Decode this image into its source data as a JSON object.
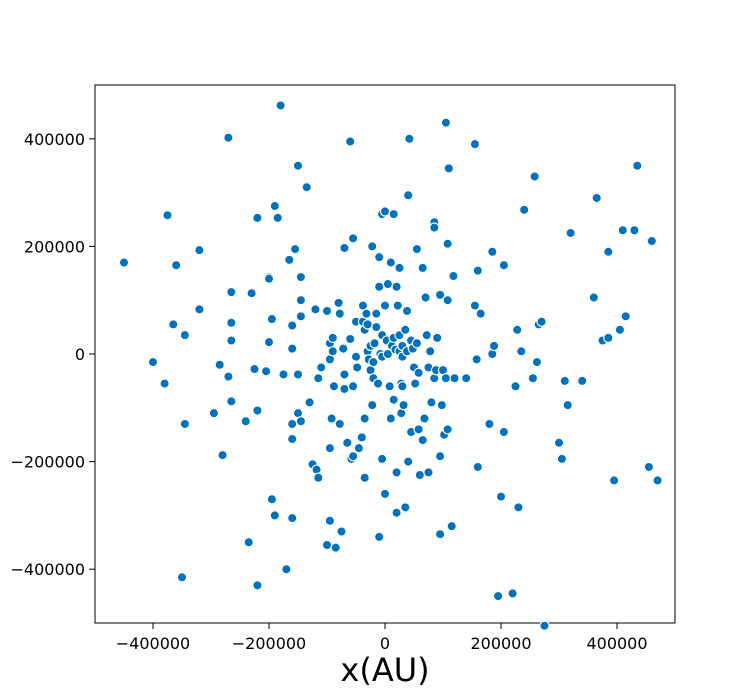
{
  "chart_data": {
    "type": "scatter",
    "title": "",
    "xlabel": "x(AU)",
    "ylabel": "",
    "xlim": [
      -500000,
      500000
    ],
    "ylim": [
      -500000,
      500000
    ],
    "xticks": [
      -400000,
      -200000,
      0,
      200000,
      400000
    ],
    "yticks": [
      -400000,
      -200000,
      0,
      200000,
      400000
    ],
    "xtick_labels": [
      "−400000",
      "−200000",
      "0",
      "200000",
      "400000"
    ],
    "ytick_labels": [
      "−400000",
      "−200000",
      "0",
      "200000",
      "400000"
    ],
    "grid": false,
    "marker_color": "#0072BD",
    "marker_edge_color": "#ffffff",
    "points": [
      [
        -450000,
        170000
      ],
      [
        -400000,
        -15000
      ],
      [
        -380000,
        -55000
      ],
      [
        -375000,
        258000
      ],
      [
        -365000,
        55000
      ],
      [
        -360000,
        165000
      ],
      [
        -350000,
        -415000
      ],
      [
        -345000,
        35000
      ],
      [
        -345000,
        -130000
      ],
      [
        -320000,
        193000
      ],
      [
        -320000,
        83000
      ],
      [
        -295000,
        -110000
      ],
      [
        -285000,
        -20000
      ],
      [
        -280000,
        -188000
      ],
      [
        -270000,
        402000
      ],
      [
        -265000,
        115000
      ],
      [
        -265000,
        58000
      ],
      [
        -265000,
        25000
      ],
      [
        -270000,
        -42000
      ],
      [
        -265000,
        -88000
      ],
      [
        -240000,
        -125000
      ],
      [
        -235000,
        -350000
      ],
      [
        -230000,
        113000
      ],
      [
        -225000,
        -28000
      ],
      [
        -220000,
        -430000
      ],
      [
        -220000,
        253000
      ],
      [
        -220000,
        -105000
      ],
      [
        -205000,
        -32000
      ],
      [
        -200000,
        143000
      ],
      [
        -200000,
        140000
      ],
      [
        -200000,
        22000
      ],
      [
        -195000,
        -270000
      ],
      [
        -195000,
        65000
      ],
      [
        -190000,
        275000
      ],
      [
        -190000,
        -300000
      ],
      [
        -185000,
        253000
      ],
      [
        -180000,
        462000
      ],
      [
        -175000,
        -38000
      ],
      [
        -170000,
        -400000
      ],
      [
        -165000,
        175000
      ],
      [
        -160000,
        53000
      ],
      [
        -160000,
        10000
      ],
      [
        -160000,
        -130000
      ],
      [
        -160000,
        -158000
      ],
      [
        -160000,
        -305000
      ],
      [
        -155000,
        195000
      ],
      [
        -150000,
        350000
      ],
      [
        -150000,
        -38000
      ],
      [
        -150000,
        -110000
      ],
      [
        -145000,
        143000
      ],
      [
        -145000,
        100000
      ],
      [
        -145000,
        70000
      ],
      [
        -145000,
        -125000
      ],
      [
        -135000,
        310000
      ],
      [
        -130000,
        -90000
      ],
      [
        -125000,
        -205000
      ],
      [
        -120000,
        83000
      ],
      [
        -118000,
        -215000
      ],
      [
        -115000,
        -230000
      ],
      [
        -115000,
        -45000
      ],
      [
        -110000,
        -25000
      ],
      [
        -100000,
        80000
      ],
      [
        -100000,
        -355000
      ],
      [
        -95000,
        -175000
      ],
      [
        -95000,
        -310000
      ],
      [
        -95000,
        20000
      ],
      [
        -95000,
        -10000
      ],
      [
        -92000,
        -120000
      ],
      [
        -90000,
        30000
      ],
      [
        -90000,
        5000
      ],
      [
        -88000,
        -60000
      ],
      [
        -85000,
        -360000
      ],
      [
        -80000,
        95000
      ],
      [
        -78000,
        75000
      ],
      [
        -78000,
        -130000
      ],
      [
        -75000,
        -330000
      ],
      [
        -72000,
        10000
      ],
      [
        -70000,
        197000
      ],
      [
        -70000,
        -38000
      ],
      [
        -70000,
        -65000
      ],
      [
        -65000,
        -165000
      ],
      [
        -60000,
        395000
      ],
      [
        -60000,
        28000
      ],
      [
        -58000,
        -195000
      ],
      [
        -55000,
        -190000
      ],
      [
        -55000,
        215000
      ],
      [
        -55000,
        -60000
      ],
      [
        -50000,
        60000
      ],
      [
        -50000,
        -5000
      ],
      [
        -48000,
        -25000
      ],
      [
        -45000,
        -175000
      ],
      [
        -40000,
        -155000
      ],
      [
        -38000,
        90000
      ],
      [
        -38000,
        60000
      ],
      [
        -35000,
        45000
      ],
      [
        -35000,
        -120000
      ],
      [
        -35000,
        -230000
      ],
      [
        -32000,
        75000
      ],
      [
        -30000,
        5000
      ],
      [
        -30000,
        55000
      ],
      [
        -28000,
        -10000
      ],
      [
        -25000,
        -30000
      ],
      [
        -25000,
        15000
      ],
      [
        -22000,
        -95000
      ],
      [
        -22000,
        200000
      ],
      [
        -20000,
        -45000
      ],
      [
        -20000,
        -15000
      ],
      [
        -18000,
        20000
      ],
      [
        -15000,
        50000
      ],
      [
        -15000,
        75000
      ],
      [
        -12000,
        -55000
      ],
      [
        -10000,
        -340000
      ],
      [
        -10000,
        125000
      ],
      [
        -10000,
        180000
      ],
      [
        -8000,
        0
      ],
      [
        -5000,
        -195000
      ],
      [
        -5000,
        260000
      ],
      [
        -5000,
        35000
      ],
      [
        -5000,
        -5000
      ],
      [
        0,
        -260000
      ],
      [
        0,
        265000
      ],
      [
        0,
        90000
      ],
      [
        3000,
        25000
      ],
      [
        5000,
        130000
      ],
      [
        5000,
        0
      ],
      [
        8000,
        -60000
      ],
      [
        10000,
        170000
      ],
      [
        10000,
        -120000
      ],
      [
        12000,
        15000
      ],
      [
        15000,
        -85000
      ],
      [
        15000,
        30000
      ],
      [
        15000,
        260000
      ],
      [
        18000,
        8000
      ],
      [
        20000,
        -220000
      ],
      [
        20000,
        -295000
      ],
      [
        20000,
        125000
      ],
      [
        22000,
        90000
      ],
      [
        25000,
        160000
      ],
      [
        25000,
        35000
      ],
      [
        25000,
        5000
      ],
      [
        28000,
        -110000
      ],
      [
        28000,
        -55000
      ],
      [
        30000,
        -60000
      ],
      [
        30000,
        15000
      ],
      [
        30000,
        -5000
      ],
      [
        32000,
        -95000
      ],
      [
        35000,
        -285000
      ],
      [
        35000,
        45000
      ],
      [
        38000,
        5000
      ],
      [
        38000,
        80000
      ],
      [
        40000,
        295000
      ],
      [
        40000,
        -200000
      ],
      [
        42000,
        400000
      ],
      [
        45000,
        -145000
      ],
      [
        45000,
        25000
      ],
      [
        48000,
        10000
      ],
      [
        50000,
        -25000
      ],
      [
        52000,
        -55000
      ],
      [
        55000,
        195000
      ],
      [
        55000,
        20000
      ],
      [
        58000,
        -140000
      ],
      [
        58000,
        -35000
      ],
      [
        60000,
        -225000
      ],
      [
        65000,
        -160000
      ],
      [
        65000,
        160000
      ],
      [
        68000,
        -120000
      ],
      [
        70000,
        105000
      ],
      [
        72000,
        35000
      ],
      [
        75000,
        -25000
      ],
      [
        75000,
        -220000
      ],
      [
        78000,
        5000
      ],
      [
        80000,
        -90000
      ],
      [
        85000,
        245000
      ],
      [
        85000,
        235000
      ],
      [
        85000,
        -45000
      ],
      [
        88000,
        -30000
      ],
      [
        90000,
        30000
      ],
      [
        95000,
        110000
      ],
      [
        95000,
        -190000
      ],
      [
        95000,
        -335000
      ],
      [
        98000,
        -95000
      ],
      [
        100000,
        -30000
      ],
      [
        102000,
        -150000
      ],
      [
        105000,
        430000
      ],
      [
        105000,
        -45000
      ],
      [
        108000,
        205000
      ],
      [
        108000,
        100000
      ],
      [
        108000,
        -140000
      ],
      [
        110000,
        345000
      ],
      [
        115000,
        -320000
      ],
      [
        118000,
        145000
      ],
      [
        120000,
        -45000
      ],
      [
        140000,
        -45000
      ],
      [
        155000,
        390000
      ],
      [
        155000,
        90000
      ],
      [
        158000,
        -10000
      ],
      [
        160000,
        -210000
      ],
      [
        160000,
        155000
      ],
      [
        165000,
        75000
      ],
      [
        180000,
        -130000
      ],
      [
        185000,
        190000
      ],
      [
        185000,
        0
      ],
      [
        188000,
        15000
      ],
      [
        195000,
        -450000
      ],
      [
        200000,
        -265000
      ],
      [
        205000,
        165000
      ],
      [
        205000,
        -145000
      ],
      [
        220000,
        -445000
      ],
      [
        225000,
        -60000
      ],
      [
        228000,
        45000
      ],
      [
        230000,
        -285000
      ],
      [
        235000,
        5000
      ],
      [
        240000,
        268000
      ],
      [
        255000,
        -45000
      ],
      [
        258000,
        330000
      ],
      [
        262000,
        -15000
      ],
      [
        265000,
        55000
      ],
      [
        270000,
        60000
      ],
      [
        275000,
        -505000
      ],
      [
        300000,
        -165000
      ],
      [
        305000,
        -195000
      ],
      [
        310000,
        -50000
      ],
      [
        315000,
        -95000
      ],
      [
        320000,
        225000
      ],
      [
        340000,
        -50000
      ],
      [
        360000,
        105000
      ],
      [
        365000,
        290000
      ],
      [
        375000,
        25000
      ],
      [
        385000,
        30000
      ],
      [
        385000,
        190000
      ],
      [
        395000,
        -235000
      ],
      [
        405000,
        45000
      ],
      [
        410000,
        230000
      ],
      [
        415000,
        70000
      ],
      [
        430000,
        230000
      ],
      [
        435000,
        350000
      ],
      [
        455000,
        -210000
      ],
      [
        460000,
        210000
      ],
      [
        470000,
        -235000
      ]
    ]
  }
}
